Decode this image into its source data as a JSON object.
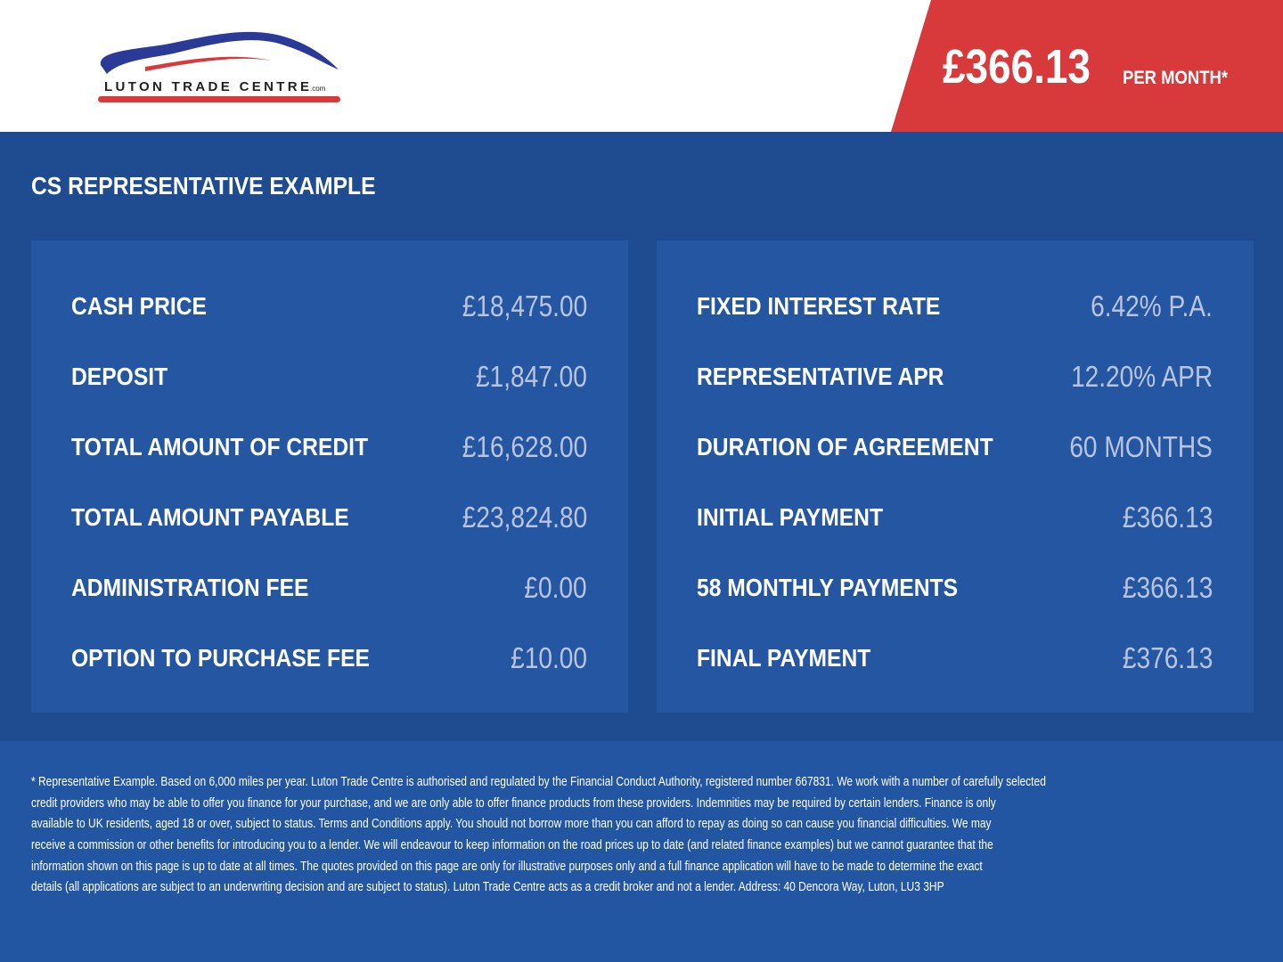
{
  "header": {
    "logo_text": "LUTON TRADE CENTRE.com",
    "price": "£366.13",
    "per_month": "PER MONTH*"
  },
  "colors": {
    "brand_blue": "#1f4b90",
    "panel_blue": "#2456a2",
    "accent_red": "#d8393a"
  },
  "section_title": "CS REPRESENTATIVE EXAMPLE",
  "left": [
    {
      "label": "CASH PRICE",
      "value": "£18,475.00"
    },
    {
      "label": "DEPOSIT",
      "value": "£1,847.00"
    },
    {
      "label": "TOTAL AMOUNT OF CREDIT",
      "value": "£16,628.00"
    },
    {
      "label": "TOTAL AMOUNT PAYABLE",
      "value": "£23,824.80"
    },
    {
      "label": "ADMINISTRATION FEE",
      "value": "£0.00"
    },
    {
      "label": "OPTION TO PURCHASE FEE",
      "value": "£10.00"
    }
  ],
  "right": [
    {
      "label": "FIXED INTEREST RATE",
      "value": "6.42% P.A."
    },
    {
      "label": "REPRESENTATIVE APR",
      "value": "12.20% APR"
    },
    {
      "label": "DURATION OF AGREEMENT",
      "value": "60 MONTHS"
    },
    {
      "label": "INITIAL PAYMENT",
      "value": "£366.13"
    },
    {
      "label": "58 MONTHLY PAYMENTS",
      "value": "£366.13"
    },
    {
      "label": "FINAL PAYMENT",
      "value": "£376.13"
    }
  ],
  "disclaimer": [
    "* Representative Example. Based on 6,000 miles per year. Luton Trade Centre is authorised and regulated by the Financial Conduct Authority, registered number 667831. We work with a number of carefully selected",
    "credit providers who may be able to offer you finance for your purchase, and we are only able to offer finance products from these providers. Indemnities may be required by certain lenders. Finance is only",
    "available to UK residents, aged 18 or over, subject to status. Terms and Conditions apply. You should not borrow more than you can afford to repay as doing so can cause you financial difficulties. We may",
    "receive a commission or other benefits for introducing you to a lender. We will endeavour to keep information on the road prices up to date (and related finance examples) but we cannot guarantee that the",
    "information shown on this page is up to date at all times. The quotes provided on this page are only for illustrative purposes only and a full finance application will have to be made to determine the exact",
    "details (all applications are subject to an underwriting decision and are subject to status). Luton Trade Centre acts as a credit broker and not a lender. Address: 40 Dencora Way, Luton, LU3 3HP"
  ]
}
